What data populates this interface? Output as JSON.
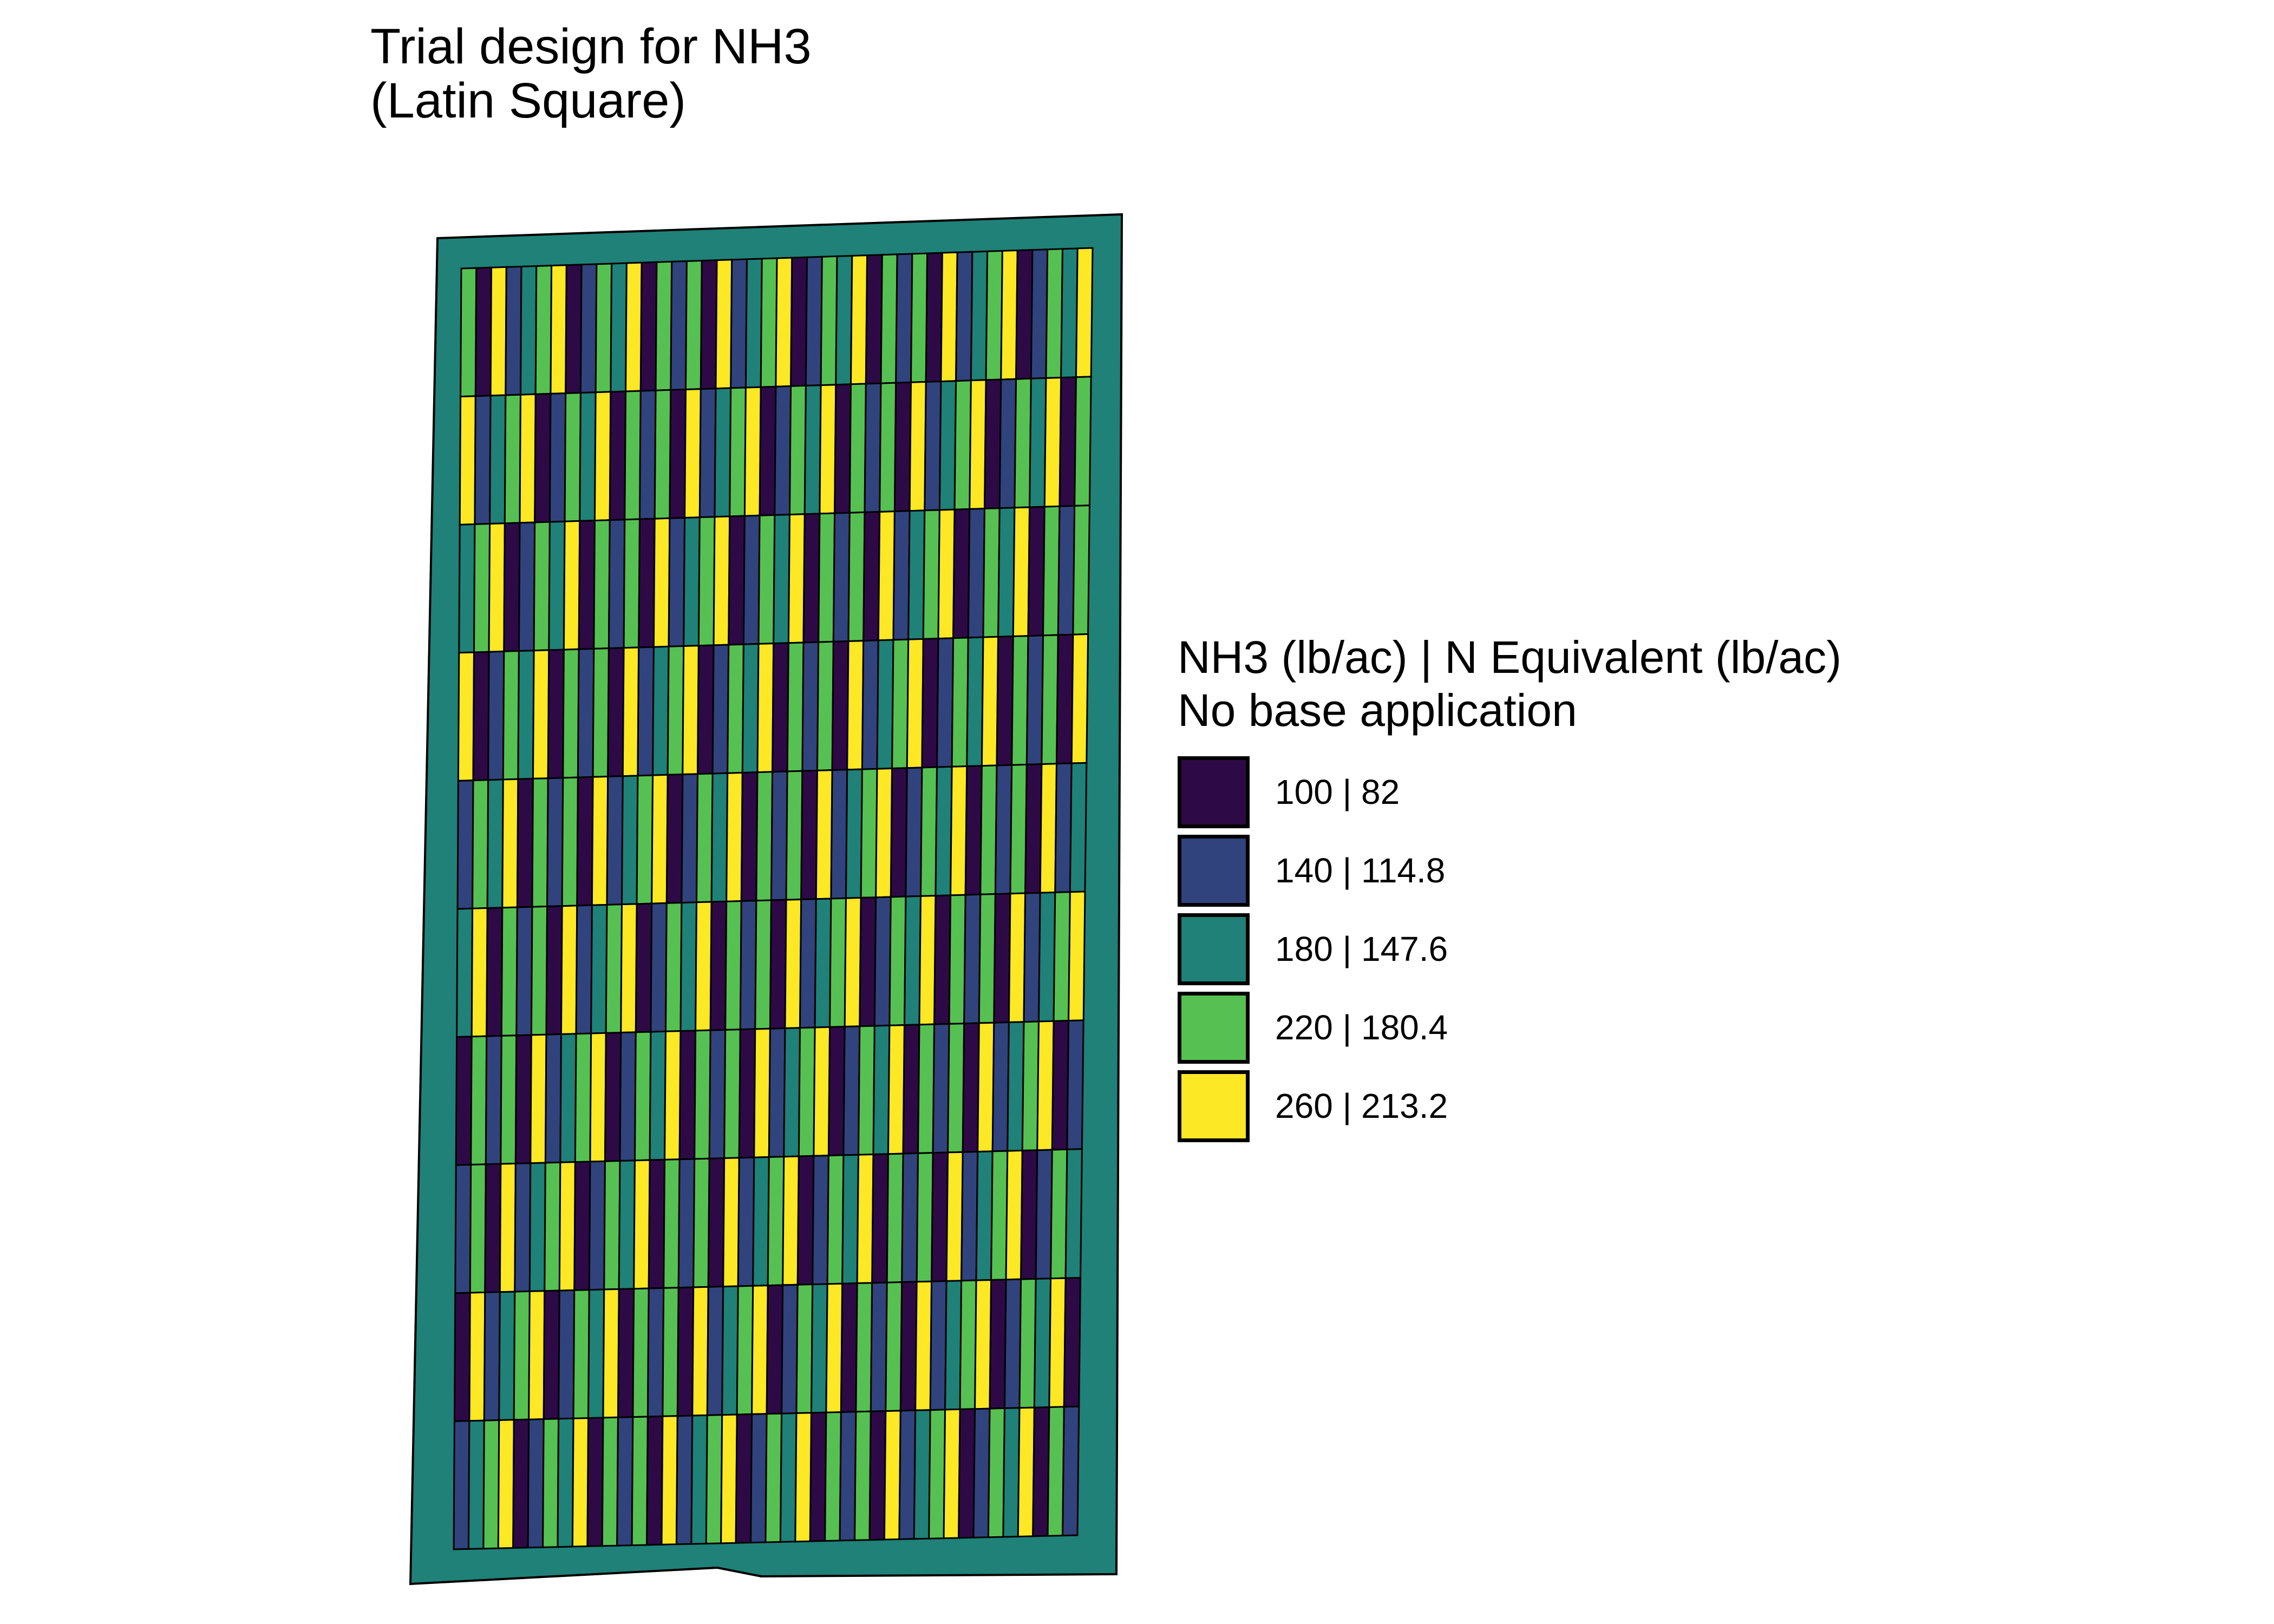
{
  "title_line1": "Trial design for NH3",
  "title_line2": "(Latin Square)",
  "legend": {
    "title_line1": "NH3 (lb/ac) | N Equivalent (lb/ac)",
    "title_line2": "No base application",
    "items": [
      {
        "label": "100 | 82",
        "color": "#2d0a45"
      },
      {
        "label": "140 | 114.8",
        "color": "#31437d"
      },
      {
        "label": "180 | 147.6",
        "color": "#1f8178"
      },
      {
        "label": "220 | 180.4",
        "color": "#56c152"
      },
      {
        "label": "260 | 213.2",
        "color": "#fde825"
      }
    ]
  },
  "field": {
    "headland_rate_index": 2,
    "strip_count": 42,
    "block_count": 10,
    "design_sequence": [
      3,
      0,
      4,
      1,
      2,
      3,
      4,
      0,
      1,
      3,
      2,
      4,
      0,
      3,
      1
    ]
  }
}
